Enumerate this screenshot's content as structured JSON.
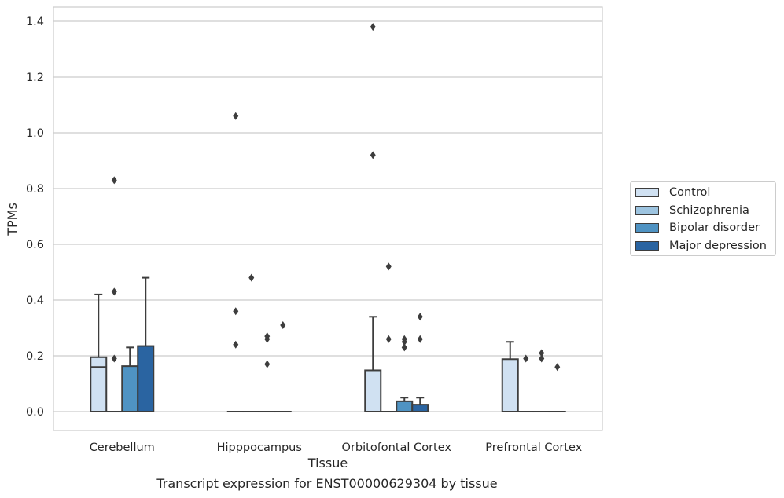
{
  "caption": "Transcript expression for ENST00000629304 by tissue",
  "chart_data": {
    "type": "box",
    "title": "",
    "xlabel": "Tissue",
    "ylabel": "TPMs",
    "ylim": [
      -0.07,
      1.45
    ],
    "yticks": [
      0.0,
      0.2,
      0.4,
      0.6,
      0.8,
      1.0,
      1.2,
      1.4
    ],
    "ytick_labels": [
      "0.0",
      "0.2",
      "0.4",
      "0.6",
      "0.8",
      "1.0",
      "1.2",
      "1.4"
    ],
    "grid": "horizontal",
    "legend_position": "right",
    "categories": [
      "Cerebellum",
      "Hipppocampus",
      "Orbitofontal Cortex",
      "Prefrontal Cortex"
    ],
    "series": [
      {
        "name": "Control",
        "color": "#d0e1f2",
        "boxes": [
          {
            "q1": 0.0,
            "median": 0.16,
            "q3": 0.195,
            "whisker_low": 0.0,
            "whisker_high": 0.42,
            "outliers": []
          },
          {
            "q1": 0.0,
            "median": 0.0,
            "q3": 0.0,
            "whisker_low": 0.0,
            "whisker_high": 0.0,
            "outliers": [
              0.24,
              0.36,
              1.06
            ]
          },
          {
            "q1": 0.0,
            "median": 0.0,
            "q3": 0.148,
            "whisker_low": 0.0,
            "whisker_high": 0.34,
            "outliers": [
              0.92,
              1.38
            ]
          },
          {
            "q1": 0.0,
            "median": 0.0,
            "q3": 0.188,
            "whisker_low": 0.0,
            "whisker_high": 0.25,
            "outliers": []
          }
        ]
      },
      {
        "name": "Schizophrenia",
        "color": "#9dc4e0",
        "boxes": [
          {
            "q1": 0.0,
            "median": 0.0,
            "q3": 0.0,
            "whisker_low": 0.0,
            "whisker_high": 0.0,
            "outliers": [
              0.19,
              0.43,
              0.83
            ]
          },
          {
            "q1": 0.0,
            "median": 0.0,
            "q3": 0.0,
            "whisker_low": 0.0,
            "whisker_high": 0.0,
            "outliers": [
              0.48
            ]
          },
          {
            "q1": 0.0,
            "median": 0.0,
            "q3": 0.0,
            "whisker_low": 0.0,
            "whisker_high": 0.0,
            "outliers": [
              0.26,
              0.52
            ]
          },
          {
            "q1": 0.0,
            "median": 0.0,
            "q3": 0.0,
            "whisker_low": 0.0,
            "whisker_high": 0.0,
            "outliers": [
              0.19
            ]
          }
        ]
      },
      {
        "name": "Bipolar disorder",
        "color": "#4f93c3",
        "boxes": [
          {
            "q1": 0.0,
            "median": 0.0,
            "q3": 0.163,
            "whisker_low": 0.0,
            "whisker_high": 0.23,
            "outliers": []
          },
          {
            "q1": 0.0,
            "median": 0.0,
            "q3": 0.0,
            "whisker_low": 0.0,
            "whisker_high": 0.0,
            "outliers": [
              0.17,
              0.26,
              0.27
            ]
          },
          {
            "q1": 0.0,
            "median": 0.0,
            "q3": 0.037,
            "whisker_low": 0.0,
            "whisker_high": 0.05,
            "outliers": [
              0.23,
              0.25,
              0.26
            ]
          },
          {
            "q1": 0.0,
            "median": 0.0,
            "q3": 0.0,
            "whisker_low": 0.0,
            "whisker_high": 0.0,
            "outliers": [
              0.19,
              0.21
            ]
          }
        ]
      },
      {
        "name": "Major depression",
        "color": "#2a64a1",
        "boxes": [
          {
            "q1": 0.0,
            "median": 0.0,
            "q3": 0.235,
            "whisker_low": 0.0,
            "whisker_high": 0.48,
            "outliers": []
          },
          {
            "q1": 0.0,
            "median": 0.0,
            "q3": 0.0,
            "whisker_low": 0.0,
            "whisker_high": 0.0,
            "outliers": [
              0.31
            ]
          },
          {
            "q1": 0.0,
            "median": 0.0,
            "q3": 0.025,
            "whisker_low": 0.0,
            "whisker_high": 0.05,
            "outliers": [
              0.26,
              0.34
            ]
          },
          {
            "q1": 0.0,
            "median": 0.0,
            "q3": 0.0,
            "whisker_low": 0.0,
            "whisker_high": 0.0,
            "outliers": [
              0.16
            ]
          }
        ]
      }
    ]
  }
}
